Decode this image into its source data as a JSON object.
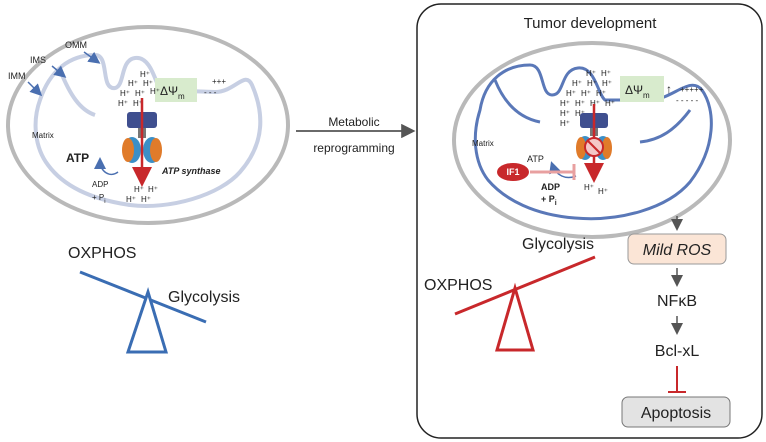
{
  "left": {
    "labels": {
      "omm": "OMM",
      "ims": "IMS",
      "imm": "IMM",
      "matrix": "Matrix"
    },
    "delta_psi": "ΔΨ",
    "delta_psi_sub": "m",
    "plus_signs": "+++",
    "minus_signs": "- - -",
    "h_ion": "H⁺",
    "atp": "ATP",
    "adp": "ADP",
    "pi": "+ P",
    "pi_sub": "i",
    "atp_synthase": "ATP synthase",
    "balance_heavy": "OXPHOS",
    "balance_light": "Glycolysis"
  },
  "arrow_label": [
    "Metabolic",
    "reprogramming"
  ],
  "right": {
    "title": "Tumor development",
    "labels": {
      "matrix": "Matrix"
    },
    "delta_psi": "ΔΨ",
    "delta_psi_sub": "m",
    "up_arrow": "↑",
    "plus_signs": "+++++",
    "minus_signs": "- - - - -",
    "h_ion": "H⁺",
    "atp": "ATP",
    "if1": "IF1",
    "adp": "ADP",
    "pi": "+ P",
    "pi_sub": "i",
    "balance_light": "Glycolysis",
    "balance_heavy": "OXPHOS",
    "pathway": [
      "Mild ROS",
      "NFκB",
      "Bcl-xL",
      "Apoptosis"
    ]
  },
  "colors": {
    "blue_arrow": "#4a6fb0",
    "red": "#c8282b",
    "membrane_gray": "#b9b9b9",
    "membrane_blue": "#5a78b8",
    "green_box": "#d8ebcd",
    "ros_box": "#fbe5d6",
    "apoptosis_box": "#e3e3e3"
  }
}
